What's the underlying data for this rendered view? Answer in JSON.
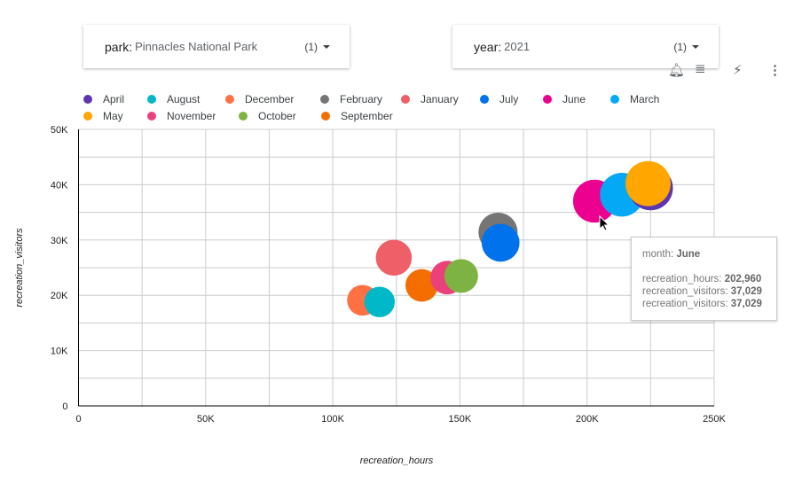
{
  "filters": [
    {
      "key": "park",
      "value": "Pinnacles National Park",
      "count": "(1)"
    },
    {
      "key": "year",
      "value": "2021",
      "count": "(1)"
    }
  ],
  "toolbar_icons": [
    "alert-bell-icon",
    "filter-icon",
    "quick-action-off-icon",
    "more-vert-icon"
  ],
  "tooltip": {
    "month_label": "month: ",
    "month": "June",
    "rows": [
      {
        "label": "recreation_hours: ",
        "value": "202,960"
      },
      {
        "label": "recreation_visitors: ",
        "value": "37,029"
      },
      {
        "label": "recreation_visitors: ",
        "value": "37,029"
      }
    ]
  },
  "chart_data": {
    "type": "scatter",
    "subtype": "bubble",
    "xlabel": "recreation_hours",
    "ylabel": "recreation_visitors",
    "xlim": [
      0,
      250000
    ],
    "ylim": [
      0,
      50000
    ],
    "x_ticks": [
      "0",
      "50K",
      "100K",
      "150K",
      "200K",
      "250K"
    ],
    "y_ticks": [
      "0",
      "10K",
      "20K",
      "30K",
      "40K",
      "50K"
    ],
    "grid": true,
    "legend": "top",
    "series": [
      {
        "name": "April",
        "color": "#5e35b1",
        "x": 225000,
        "y": 39400
      },
      {
        "name": "August",
        "color": "#00b8c8",
        "x": 118400,
        "y": 18800
      },
      {
        "name": "December",
        "color": "#ff7043",
        "x": 111700,
        "y": 19100
      },
      {
        "name": "February",
        "color": "#757575",
        "x": 165000,
        "y": 31400
      },
      {
        "name": "January",
        "color": "#ef5f67",
        "x": 124000,
        "y": 26800
      },
      {
        "name": "July",
        "color": "#0072ec",
        "x": 166000,
        "y": 29500
      },
      {
        "name": "June",
        "color": "#ec0090",
        "x": 202960,
        "y": 37029
      },
      {
        "name": "March",
        "color": "#03a9f4",
        "x": 213700,
        "y": 38200
      },
      {
        "name": "May",
        "color": "#ffa600",
        "x": 224000,
        "y": 40200
      },
      {
        "name": "November",
        "color": "#ec407a",
        "x": 145000,
        "y": 23200
      },
      {
        "name": "October",
        "color": "#7cb342",
        "x": 150500,
        "y": 23500
      },
      {
        "name": "September",
        "color": "#f46d00",
        "x": 135000,
        "y": 21800
      }
    ]
  }
}
